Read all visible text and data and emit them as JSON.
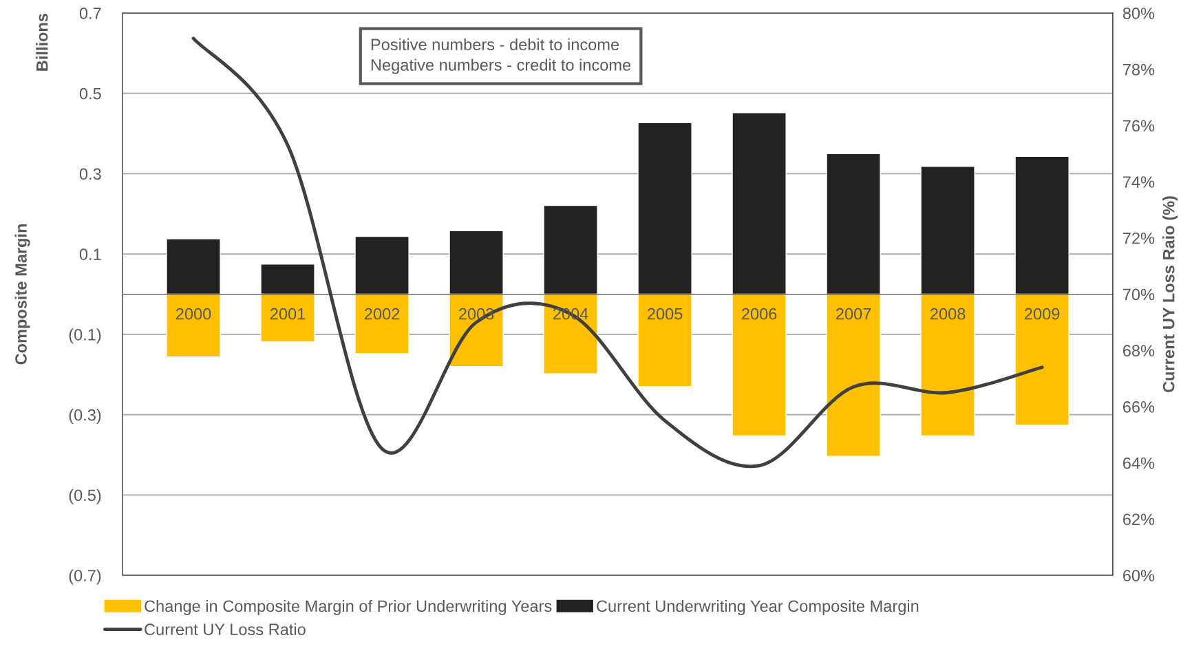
{
  "chart_data": {
    "type": "bar",
    "stacked": true,
    "categories": [
      "2000",
      "2001",
      "2002",
      "2003",
      "2004",
      "2005",
      "2006",
      "2007",
      "2008",
      "2009"
    ],
    "series": [
      {
        "name": "Change in Composite Margin of Prior Underwriting Years",
        "color": "#ffc000",
        "values": [
          -0.156,
          -0.119,
          -0.148,
          -0.18,
          -0.198,
          -0.23,
          -0.353,
          -0.404,
          -0.353,
          -0.326
        ]
      },
      {
        "name": "Current Underwriting Year Composite Margin",
        "color": "#222222",
        "values": [
          0.138,
          0.075,
          0.144,
          0.158,
          0.221,
          0.427,
          0.452,
          0.35,
          0.318,
          0.343
        ]
      },
      {
        "name": "Current UY Loss Ratio",
        "type": "line",
        "axis": "y2",
        "color": "#404040",
        "values": [
          79.1,
          75.3,
          64.5,
          69.0,
          69.3,
          65.5,
          63.9,
          66.7,
          66.5,
          67.4
        ]
      }
    ],
    "ylabel": "Composite Margin",
    "y2label": "Current UY Loss Raio (%)",
    "ylim": [
      -0.7,
      0.7
    ],
    "yticks": [
      {
        "value": -0.7,
        "label": "(0.7)"
      },
      {
        "value": -0.5,
        "label": "(0.5)"
      },
      {
        "value": -0.3,
        "label": "(0.3)"
      },
      {
        "value": -0.1,
        "label": "(0.1)"
      },
      0.1,
      0.3,
      0.5,
      0.7
    ],
    "y2lim": [
      60,
      80
    ],
    "y2ticks": [
      {
        "value": 60,
        "label": "60%"
      },
      {
        "value": 62,
        "label": "62%"
      },
      {
        "value": 64,
        "label": "64%"
      },
      {
        "value": 66,
        "label": "66%"
      },
      {
        "value": 68,
        "label": "68%"
      },
      {
        "value": 70,
        "label": "70%"
      },
      {
        "value": 72,
        "label": "72%"
      },
      {
        "value": 74,
        "label": "74%"
      },
      {
        "value": 76,
        "label": "76%"
      },
      {
        "value": 78,
        "label": "78%"
      },
      {
        "value": 80,
        "label": "80%"
      }
    ],
    "annotations": [
      "Billions",
      "Positive numbers - debit to income\nNegative numbers - credit to income"
    ],
    "grid": "y",
    "legend": "bottom",
    "marker": "none",
    "line_style": "solid"
  }
}
